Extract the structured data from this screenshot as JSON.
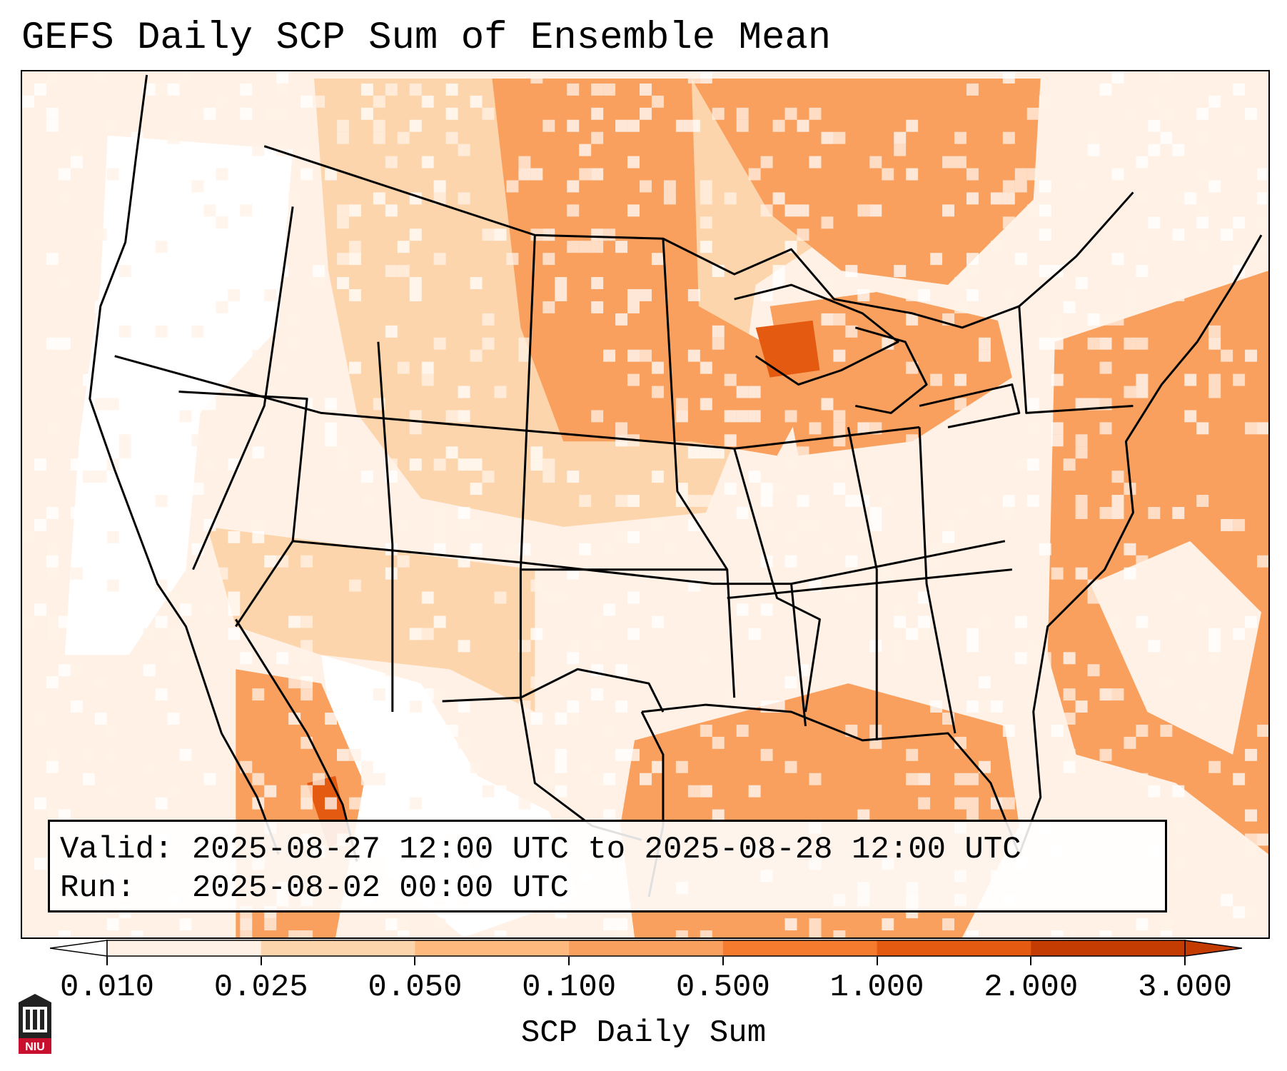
{
  "title": "GEFS Daily SCP Sum of Ensemble Mean",
  "info": {
    "valid_label": "Valid:",
    "valid_value": "2025-08-27 12:00 UTC to 2025-08-28 12:00 UTC",
    "run_label": "Run:",
    "run_value": "2025-08-02 00:00 UTC"
  },
  "colorbar": {
    "label": "SCP Daily Sum",
    "ticks": [
      "0.010",
      "0.025",
      "0.050",
      "0.100",
      "0.500",
      "1.000",
      "2.000",
      "3.000"
    ],
    "colors": [
      "#ffffff",
      "#fff1e5",
      "#fdd5ac",
      "#fdb97e",
      "#f9a05f",
      "#f57b2e",
      "#e35a10",
      "#c43c02"
    ],
    "extend": "both"
  },
  "logo": {
    "text": "NIU",
    "colors": {
      "red": "#c8102e",
      "dark": "#222222"
    }
  },
  "map": {
    "projection": "Lambert Conformal, CONUS",
    "colors": {
      "state_lines": "#000000",
      "low": "#fff1e5",
      "mid": "#fdd5ac",
      "high": "#f9a05f",
      "peak": "#e35a10"
    }
  }
}
